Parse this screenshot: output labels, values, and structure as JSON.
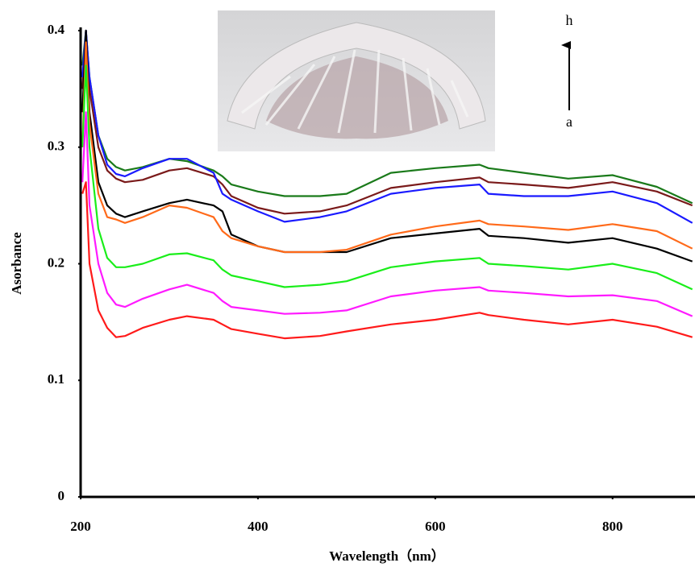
{
  "chart_data": {
    "type": "line",
    "x": [
      202,
      206,
      210,
      220,
      230,
      240,
      250,
      270,
      300,
      320,
      350,
      360,
      370,
      400,
      430,
      470,
      500,
      550,
      600,
      650,
      660,
      700,
      750,
      800,
      850,
      890
    ],
    "series": [
      {
        "color": "#1a7a1a",
        "values": [
          0.37,
          0.4,
          0.36,
          0.31,
          0.29,
          0.283,
          0.28,
          0.283,
          0.29,
          0.288,
          0.28,
          0.275,
          0.268,
          0.262,
          0.258,
          0.258,
          0.26,
          0.278,
          0.282,
          0.285,
          0.282,
          0.278,
          0.273,
          0.276,
          0.266,
          0.252
        ]
      },
      {
        "color": "#7a1a1a",
        "values": [
          0.35,
          0.4,
          0.35,
          0.3,
          0.28,
          0.273,
          0.27,
          0.272,
          0.28,
          0.282,
          0.275,
          0.268,
          0.258,
          0.248,
          0.243,
          0.245,
          0.25,
          0.265,
          0.27,
          0.274,
          0.27,
          0.268,
          0.265,
          0.27,
          0.262,
          0.25
        ]
      },
      {
        "color": "#1a1aff",
        "values": [
          0.36,
          0.4,
          0.36,
          0.31,
          0.285,
          0.277,
          0.275,
          0.282,
          0.29,
          0.29,
          0.278,
          0.26,
          0.255,
          0.245,
          0.236,
          0.24,
          0.245,
          0.26,
          0.265,
          0.268,
          0.26,
          0.258,
          0.258,
          0.262,
          0.252,
          0.235
        ]
      },
      {
        "color": "#000000",
        "values": [
          0.33,
          0.4,
          0.33,
          0.27,
          0.25,
          0.243,
          0.24,
          0.245,
          0.252,
          0.255,
          0.25,
          0.245,
          0.225,
          0.215,
          0.21,
          0.21,
          0.21,
          0.222,
          0.226,
          0.23,
          0.224,
          0.222,
          0.218,
          0.222,
          0.213,
          0.202
        ]
      },
      {
        "color": "#ff6a1a",
        "values": [
          0.3,
          0.39,
          0.32,
          0.26,
          0.24,
          0.238,
          0.235,
          0.24,
          0.25,
          0.248,
          0.24,
          0.228,
          0.222,
          0.215,
          0.21,
          0.21,
          0.212,
          0.225,
          0.232,
          0.237,
          0.234,
          0.232,
          0.229,
          0.234,
          0.228,
          0.213
        ]
      },
      {
        "color": "#1aee1a",
        "values": [
          0.3,
          0.37,
          0.3,
          0.23,
          0.205,
          0.197,
          0.197,
          0.2,
          0.208,
          0.209,
          0.203,
          0.195,
          0.19,
          0.185,
          0.18,
          0.182,
          0.185,
          0.197,
          0.202,
          0.205,
          0.2,
          0.198,
          0.195,
          0.2,
          0.192,
          0.178
        ]
      },
      {
        "color": "#ff1aff",
        "values": [
          0.27,
          0.33,
          0.25,
          0.2,
          0.175,
          0.165,
          0.163,
          0.17,
          0.178,
          0.182,
          0.175,
          0.168,
          0.163,
          0.16,
          0.157,
          0.158,
          0.16,
          0.172,
          0.177,
          0.18,
          0.177,
          0.175,
          0.172,
          0.173,
          0.168,
          0.155
        ]
      },
      {
        "color": "#ff1a1a",
        "values": [
          0.26,
          0.27,
          0.2,
          0.16,
          0.145,
          0.137,
          0.138,
          0.145,
          0.152,
          0.155,
          0.152,
          0.148,
          0.144,
          0.14,
          0.136,
          0.138,
          0.142,
          0.148,
          0.152,
          0.158,
          0.156,
          0.152,
          0.148,
          0.152,
          0.146,
          0.137
        ]
      }
    ],
    "xlabel": "Wavelength（nm）",
    "ylabel": "Asorbance",
    "xlim": [
      200,
      893
    ],
    "ylim": [
      0,
      0.4
    ],
    "xticks": [
      200,
      400,
      600,
      800
    ],
    "yticks": [
      0,
      0.1,
      0.2,
      0.3,
      0.4
    ],
    "annotations": [
      "h",
      "a"
    ]
  }
}
